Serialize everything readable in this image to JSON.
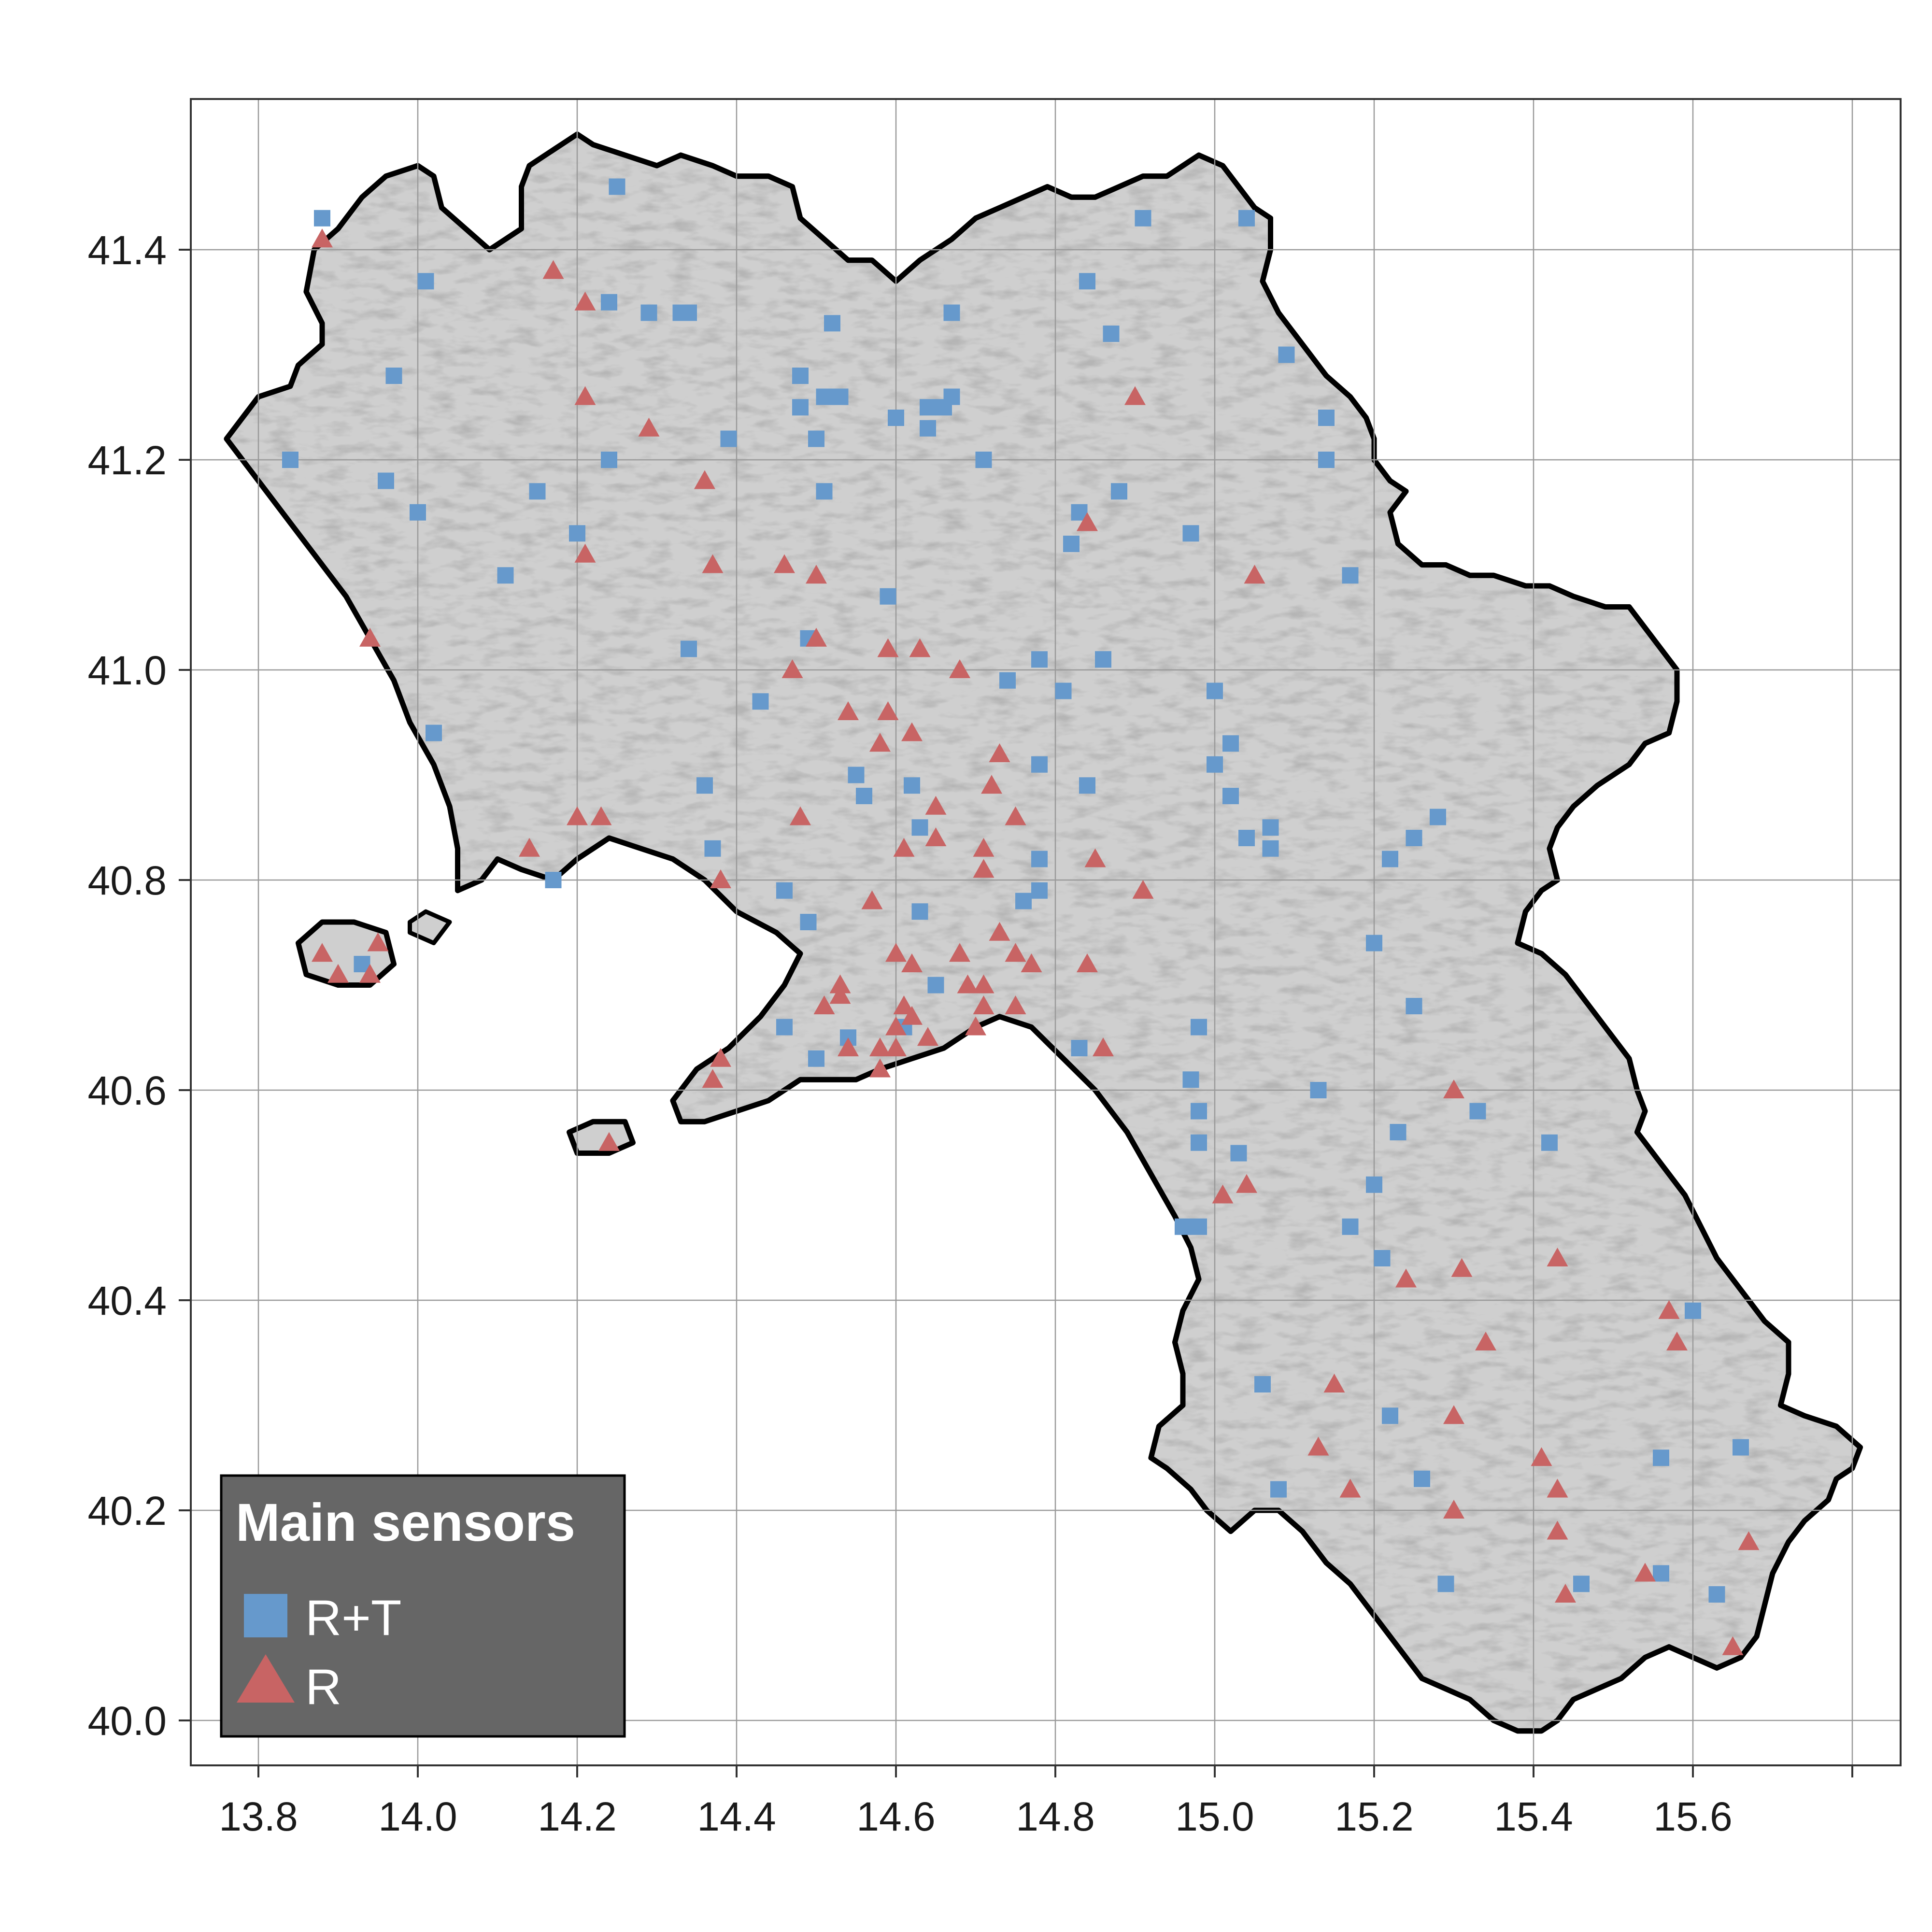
{
  "chart_data": {
    "type": "scatter",
    "title": "",
    "xlabel": "",
    "ylabel": "",
    "xlim": [
      13.73,
      15.88
    ],
    "ylim": [
      39.96,
      41.55
    ],
    "grid": true,
    "x_ticks": [
      "13.8",
      "14.0",
      "14.2",
      "14.4",
      "14.6",
      "14.8",
      "15.0",
      "15.2",
      "15.4",
      "15.6"
    ],
    "y_ticks": [
      "40.0",
      "40.2",
      "40.4",
      "40.6",
      "40.8",
      "41.0",
      "41.2",
      "41.4"
    ],
    "legend": {
      "title": "Main sensors",
      "placement": "bottom-left",
      "background": "#666666"
    },
    "colors": {
      "region_fill": "#cfcfcf",
      "relief_dark": "#a6a6a6",
      "relief_light": "#ececec",
      "coast": "#000000",
      "grid": "#999999"
    },
    "series": [
      {
        "name": "R+T",
        "marker": "square",
        "color": "#6699cc",
        "points": [
          [
            13.88,
            41.43
          ],
          [
            14.25,
            41.46
          ],
          [
            14.01,
            41.37
          ],
          [
            14.24,
            41.35
          ],
          [
            14.29,
            41.34
          ],
          [
            14.33,
            41.34
          ],
          [
            14.34,
            41.34
          ],
          [
            14.52,
            41.33
          ],
          [
            13.97,
            41.28
          ],
          [
            14.48,
            41.28
          ],
          [
            14.51,
            41.26
          ],
          [
            14.53,
            41.26
          ],
          [
            14.48,
            41.25
          ],
          [
            14.64,
            41.25
          ],
          [
            14.66,
            41.25
          ],
          [
            14.67,
            41.26
          ],
          [
            14.6,
            41.24
          ],
          [
            14.64,
            41.23
          ],
          [
            14.5,
            41.22
          ],
          [
            14.39,
            41.22
          ],
          [
            14.24,
            41.2
          ],
          [
            14.67,
            41.34
          ],
          [
            13.84,
            41.2
          ],
          [
            13.96,
            41.18
          ],
          [
            14.15,
            41.17
          ],
          [
            14.51,
            41.17
          ],
          [
            14.71,
            41.2
          ],
          [
            14.0,
            41.15
          ],
          [
            14.2,
            41.13
          ],
          [
            14.11,
            41.09
          ],
          [
            14.59,
            41.07
          ],
          [
            14.49,
            41.03
          ],
          [
            14.34,
            41.02
          ],
          [
            14.43,
            40.97
          ],
          [
            14.02,
            40.94
          ],
          [
            14.55,
            40.9
          ],
          [
            14.56,
            40.88
          ],
          [
            14.36,
            40.89
          ],
          [
            14.62,
            40.89
          ],
          [
            14.63,
            40.85
          ],
          [
            14.37,
            40.83
          ],
          [
            14.17,
            40.8
          ],
          [
            14.46,
            40.79
          ],
          [
            14.49,
            40.76
          ],
          [
            14.63,
            40.77
          ],
          [
            13.93,
            40.72
          ],
          [
            14.65,
            40.7
          ],
          [
            14.61,
            40.66
          ],
          [
            14.46,
            40.66
          ],
          [
            14.5,
            40.63
          ],
          [
            14.54,
            40.65
          ],
          [
            14.91,
            41.43
          ],
          [
            15.04,
            41.43
          ],
          [
            14.84,
            41.37
          ],
          [
            14.87,
            41.32
          ],
          [
            15.09,
            41.3
          ],
          [
            15.14,
            41.24
          ],
          [
            15.14,
            41.2
          ],
          [
            14.88,
            41.17
          ],
          [
            14.83,
            41.15
          ],
          [
            14.82,
            41.12
          ],
          [
            14.97,
            41.13
          ],
          [
            15.17,
            41.09
          ],
          [
            14.86,
            41.01
          ],
          [
            14.86,
            41.01
          ],
          [
            14.78,
            41.01
          ],
          [
            14.74,
            40.99
          ],
          [
            14.81,
            40.98
          ],
          [
            15.0,
            40.98
          ],
          [
            14.78,
            40.91
          ],
          [
            15.02,
            40.93
          ],
          [
            15.0,
            40.91
          ],
          [
            14.84,
            40.89
          ],
          [
            15.02,
            40.88
          ],
          [
            15.04,
            40.84
          ],
          [
            15.07,
            40.85
          ],
          [
            15.07,
            40.83
          ],
          [
            14.78,
            40.82
          ],
          [
            14.76,
            40.78
          ],
          [
            14.78,
            40.79
          ],
          [
            15.25,
            40.84
          ],
          [
            15.22,
            40.82
          ],
          [
            15.28,
            40.86
          ],
          [
            15.2,
            40.74
          ],
          [
            14.83,
            40.64
          ],
          [
            14.98,
            40.66
          ],
          [
            15.25,
            40.68
          ],
          [
            14.97,
            40.61
          ],
          [
            14.98,
            40.58
          ],
          [
            15.13,
            40.6
          ],
          [
            15.33,
            40.58
          ],
          [
            15.23,
            40.56
          ],
          [
            14.98,
            40.55
          ],
          [
            15.03,
            40.54
          ],
          [
            15.42,
            40.55
          ],
          [
            15.2,
            40.51
          ],
          [
            14.96,
            40.47
          ],
          [
            14.98,
            40.47
          ],
          [
            15.17,
            40.47
          ],
          [
            15.21,
            40.44
          ],
          [
            15.6,
            40.39
          ],
          [
            15.06,
            40.32
          ],
          [
            15.22,
            40.29
          ],
          [
            15.08,
            40.22
          ],
          [
            15.26,
            40.23
          ],
          [
            15.66,
            40.26
          ],
          [
            15.56,
            40.25
          ],
          [
            15.29,
            40.13
          ],
          [
            15.46,
            40.13
          ],
          [
            15.56,
            40.14
          ],
          [
            15.63,
            40.12
          ]
        ]
      },
      {
        "name": "R",
        "marker": "triangle",
        "color": "#c86464",
        "points": [
          [
            13.88,
            41.41
          ],
          [
            14.17,
            41.38
          ],
          [
            14.21,
            41.35
          ],
          [
            14.21,
            41.26
          ],
          [
            14.29,
            41.23
          ],
          [
            14.36,
            41.18
          ],
          [
            14.21,
            41.11
          ],
          [
            14.37,
            41.1
          ],
          [
            14.46,
            41.1
          ],
          [
            14.5,
            41.09
          ],
          [
            13.94,
            41.03
          ],
          [
            14.5,
            41.03
          ],
          [
            14.47,
            41.0
          ],
          [
            14.59,
            41.02
          ],
          [
            14.63,
            41.02
          ],
          [
            14.68,
            41.0
          ],
          [
            14.54,
            40.96
          ],
          [
            14.59,
            40.96
          ],
          [
            14.58,
            40.93
          ],
          [
            14.62,
            40.94
          ],
          [
            14.73,
            40.92
          ],
          [
            14.72,
            40.89
          ],
          [
            14.65,
            40.87
          ],
          [
            14.75,
            40.86
          ],
          [
            14.2,
            40.86
          ],
          [
            14.23,
            40.86
          ],
          [
            14.48,
            40.86
          ],
          [
            14.61,
            40.83
          ],
          [
            14.65,
            40.84
          ],
          [
            14.71,
            40.83
          ],
          [
            14.71,
            40.81
          ],
          [
            14.14,
            40.83
          ],
          [
            14.38,
            40.8
          ],
          [
            14.57,
            40.78
          ],
          [
            14.85,
            40.82
          ],
          [
            14.91,
            40.79
          ],
          [
            14.73,
            40.75
          ],
          [
            14.75,
            40.73
          ],
          [
            14.77,
            40.72
          ],
          [
            14.6,
            40.73
          ],
          [
            14.62,
            40.72
          ],
          [
            14.68,
            40.73
          ],
          [
            14.69,
            40.7
          ],
          [
            14.71,
            40.7
          ],
          [
            14.84,
            40.72
          ],
          [
            14.53,
            40.7
          ],
          [
            14.53,
            40.69
          ],
          [
            14.51,
            40.68
          ],
          [
            14.61,
            40.68
          ],
          [
            14.62,
            40.67
          ],
          [
            14.71,
            40.68
          ],
          [
            14.75,
            40.68
          ],
          [
            14.7,
            40.66
          ],
          [
            14.64,
            40.65
          ],
          [
            14.6,
            40.66
          ],
          [
            14.58,
            40.64
          ],
          [
            14.54,
            40.64
          ],
          [
            14.58,
            40.62
          ],
          [
            14.6,
            40.64
          ],
          [
            14.38,
            40.63
          ],
          [
            14.37,
            40.61
          ],
          [
            14.86,
            40.64
          ],
          [
            14.84,
            41.14
          ],
          [
            14.9,
            41.26
          ],
          [
            15.05,
            41.09
          ],
          [
            13.88,
            40.73
          ],
          [
            13.9,
            40.71
          ],
          [
            13.95,
            40.74
          ],
          [
            13.94,
            40.71
          ],
          [
            14.24,
            40.55
          ],
          [
            15.3,
            40.6
          ],
          [
            15.04,
            40.51
          ],
          [
            15.01,
            40.5
          ],
          [
            15.24,
            40.42
          ],
          [
            15.31,
            40.43
          ],
          [
            15.43,
            40.44
          ],
          [
            15.57,
            40.39
          ],
          [
            15.58,
            40.36
          ],
          [
            15.34,
            40.36
          ],
          [
            15.15,
            40.32
          ],
          [
            15.3,
            40.29
          ],
          [
            15.13,
            40.26
          ],
          [
            15.17,
            40.22
          ],
          [
            15.3,
            40.2
          ],
          [
            15.41,
            40.25
          ],
          [
            15.43,
            40.22
          ],
          [
            15.43,
            40.18
          ],
          [
            15.67,
            40.17
          ],
          [
            15.54,
            40.14
          ],
          [
            15.44,
            40.12
          ],
          [
            15.65,
            40.07
          ]
        ]
      }
    ]
  }
}
